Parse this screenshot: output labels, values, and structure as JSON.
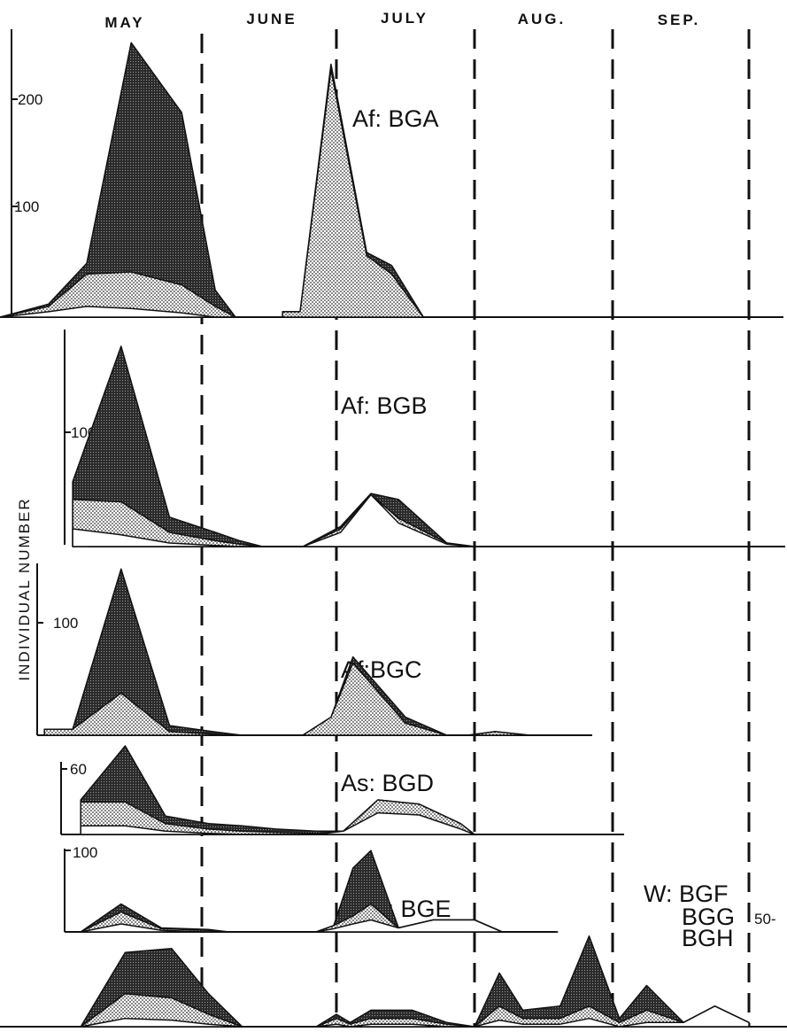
{
  "months": [
    "MAY",
    "JUNE",
    "JULY",
    "AUG.",
    "SEP."
  ],
  "y_axis_label": "INDIVIDUAL NUMBER",
  "colors": {
    "ink": "#111111",
    "heavy": "#3a3a3a",
    "light": "#b8b8b8",
    "paper": "#ffffff"
  },
  "chart_data": [
    {
      "type": "area",
      "title": "Af: BGA",
      "y_ticks": [
        100,
        200
      ],
      "ylim": [
        0,
        260
      ],
      "x_note": "x values are positions along the shared May–Sep month axis (0 = start of May, 1 = start of June, ...)",
      "series": [
        {
          "x": [
            0.0,
            0.24,
            0.43,
            0.65,
            0.9,
            1.1,
            1.25
          ],
          "values": [
            0,
            12,
            50,
            255,
            190,
            25,
            0
          ]
        },
        {
          "x": [
            0.0,
            0.24,
            0.43,
            0.65,
            0.9,
            1.1,
            1.25
          ],
          "values": [
            0,
            10,
            40,
            42,
            30,
            10,
            0
          ]
        },
        {
          "x": [
            0.0,
            0.24,
            0.43,
            0.65,
            0.9,
            1.1,
            1.25
          ],
          "values": [
            0,
            5,
            10,
            8,
            4,
            0,
            0
          ]
        },
        {
          "x": [
            1.6,
            1.73,
            1.96,
            2.22,
            2.4,
            2.63
          ],
          "values": [
            5,
            5,
            235,
            60,
            48,
            0
          ]
        },
        {
          "x": [
            1.6,
            1.73,
            1.96,
            2.22,
            2.4,
            2.63
          ],
          "values": [
            5,
            5,
            230,
            57,
            40,
            0
          ]
        }
      ]
    },
    {
      "type": "area",
      "title": "Af: BGB",
      "y_ticks": [
        100
      ],
      "ylim": [
        0,
        175
      ],
      "series": [
        {
          "x": [
            0.36,
            0.6,
            0.84,
            1.1,
            1.28,
            1.45,
            1.75,
            2.03,
            2.25,
            2.45,
            2.8,
            3.0
          ],
          "values": [
            55,
            170,
            25,
            12,
            5,
            0,
            0,
            17,
            45,
            40,
            3,
            0
          ]
        },
        {
          "x": [
            0.36,
            0.6,
            0.84,
            1.1,
            1.28,
            1.45,
            1.75,
            2.03,
            2.25,
            2.45,
            2.8,
            3.0
          ],
          "values": [
            40,
            38,
            12,
            5,
            2,
            0,
            0,
            15,
            44,
            24,
            3,
            0
          ]
        },
        {
          "x": [
            0.36,
            0.6,
            0.84,
            1.1,
            1.28,
            1.45,
            1.75,
            2.03,
            2.25,
            2.45,
            2.8,
            3.0
          ],
          "values": [
            15,
            10,
            3,
            1,
            0,
            0,
            0,
            12,
            44,
            20,
            2,
            0
          ]
        }
      ]
    },
    {
      "type": "area",
      "title": "Af:BGC",
      "y_ticks": [
        100
      ],
      "ylim": [
        0,
        140
      ],
      "series": [
        {
          "x": [
            0.22,
            0.36,
            0.6,
            0.84,
            1.08,
            1.3,
            1.55,
            1.75,
            1.96,
            2.12,
            2.5,
            2.8,
            2.95,
            3.15,
            3.4,
            3.6
          ],
          "values": [
            5,
            5,
            138,
            8,
            3,
            0,
            0,
            0,
            15,
            65,
            15,
            0,
            0,
            3,
            0,
            0
          ]
        },
        {
          "x": [
            0.22,
            0.36,
            0.6,
            0.84,
            1.08,
            1.3,
            1.55,
            1.75,
            1.96,
            2.12,
            2.5,
            2.8,
            2.95,
            3.15,
            3.4,
            3.6
          ],
          "values": [
            5,
            5,
            35,
            3,
            1,
            0,
            0,
            0,
            15,
            60,
            10,
            0,
            0,
            3,
            0,
            0
          ]
        }
      ]
    },
    {
      "type": "area",
      "title": "As: BGD",
      "y_ticks": [
        60
      ],
      "ylim": [
        0,
        85
      ],
      "series": [
        {
          "x": [
            0.4,
            0.62,
            0.82,
            1.05,
            1.3,
            1.55,
            1.85,
            2.05,
            2.3,
            2.6,
            2.9,
            3.0
          ],
          "values": [
            32,
            82,
            17,
            10,
            8,
            5,
            3,
            3,
            32,
            28,
            10,
            0
          ]
        },
        {
          "x": [
            0.4,
            0.62,
            0.82,
            1.05,
            1.3,
            1.55,
            1.85,
            2.05,
            2.3,
            2.6,
            2.9,
            3.0
          ],
          "values": [
            30,
            30,
            10,
            5,
            3,
            2,
            1,
            3,
            32,
            28,
            10,
            0
          ]
        },
        {
          "x": [
            0.4,
            0.62,
            0.82,
            1.05,
            1.3,
            1.55,
            1.85,
            2.05,
            2.3,
            2.6,
            2.9,
            3.0
          ],
          "values": [
            8,
            8,
            3,
            1,
            0,
            0,
            0,
            3,
            20,
            18,
            5,
            0
          ]
        }
      ]
    },
    {
      "type": "area",
      "title": "H: BGE",
      "y_ticks": [
        100
      ],
      "ylim": [
        0,
        130
      ],
      "series": [
        {
          "x": [
            0.4,
            0.6,
            0.8,
            1.05,
            1.2,
            1.55,
            1.85,
            1.98,
            2.12,
            2.25,
            2.45,
            2.7,
            3.0,
            3.2,
            3.4,
            3.6
          ],
          "values": [
            0,
            35,
            5,
            3,
            0,
            0,
            0,
            8,
            80,
            102,
            5,
            15,
            15,
            0,
            0,
            0
          ]
        },
        {
          "x": [
            0.4,
            0.6,
            0.8,
            1.05,
            1.2,
            1.55,
            1.85,
            1.98,
            2.12,
            2.25,
            2.45,
            2.7,
            3.0,
            3.2,
            3.4,
            3.6
          ],
          "values": [
            0,
            25,
            4,
            2,
            0,
            0,
            0,
            8,
            20,
            35,
            5,
            15,
            15,
            0,
            0,
            0
          ]
        },
        {
          "x": [
            0.4,
            0.6,
            0.8,
            1.05,
            1.2,
            1.55,
            1.85,
            1.98,
            2.12,
            2.25,
            2.45,
            2.7,
            3.0,
            3.2,
            3.4,
            3.6
          ],
          "values": [
            0,
            10,
            2,
            0,
            0,
            0,
            0,
            4,
            10,
            15,
            5,
            15,
            15,
            0,
            0,
            0
          ]
        }
      ]
    },
    {
      "type": "area",
      "title_lines": [
        "W: BGF",
        "BGG",
        "BGH"
      ],
      "y_ticks": [
        50
      ],
      "ylim": [
        0,
        115
      ],
      "series": [
        {
          "x": [
            0.4,
            0.62,
            0.85,
            1.05,
            1.3,
            1.55,
            1.85,
            2.0,
            2.1,
            2.25,
            2.55,
            2.8,
            3.0,
            3.18,
            3.35,
            3.62,
            3.83,
            4.05,
            4.25,
            4.52,
            4.75,
            5.0
          ],
          "values": [
            0,
            90,
            95,
            40,
            0,
            0,
            0,
            15,
            5,
            20,
            20,
            5,
            0,
            65,
            20,
            25,
            110,
            10,
            50,
            5,
            25,
            5
          ]
        },
        {
          "x": [
            0.4,
            0.62,
            0.85,
            1.05,
            1.3,
            1.55,
            1.85,
            2.0,
            2.1,
            2.25,
            2.55,
            2.8,
            3.0,
            3.18,
            3.35,
            3.62,
            3.83,
            4.05,
            4.25,
            4.52,
            4.75,
            5.0
          ],
          "values": [
            0,
            40,
            35,
            15,
            0,
            0,
            0,
            10,
            3,
            10,
            10,
            3,
            0,
            25,
            10,
            10,
            25,
            5,
            20,
            5,
            25,
            5
          ]
        },
        {
          "x": [
            0.4,
            0.62,
            0.85,
            1.05,
            1.3,
            1.55,
            1.85,
            2.0,
            2.1,
            2.25,
            2.55,
            2.8,
            3.0,
            3.18,
            3.35,
            3.62,
            3.83,
            4.05,
            4.25,
            4.52,
            4.75,
            5.0
          ],
          "values": [
            0,
            10,
            8,
            3,
            0,
            0,
            0,
            3,
            0,
            3,
            3,
            0,
            0,
            8,
            3,
            3,
            10,
            0,
            5,
            5,
            25,
            5
          ]
        }
      ]
    }
  ]
}
